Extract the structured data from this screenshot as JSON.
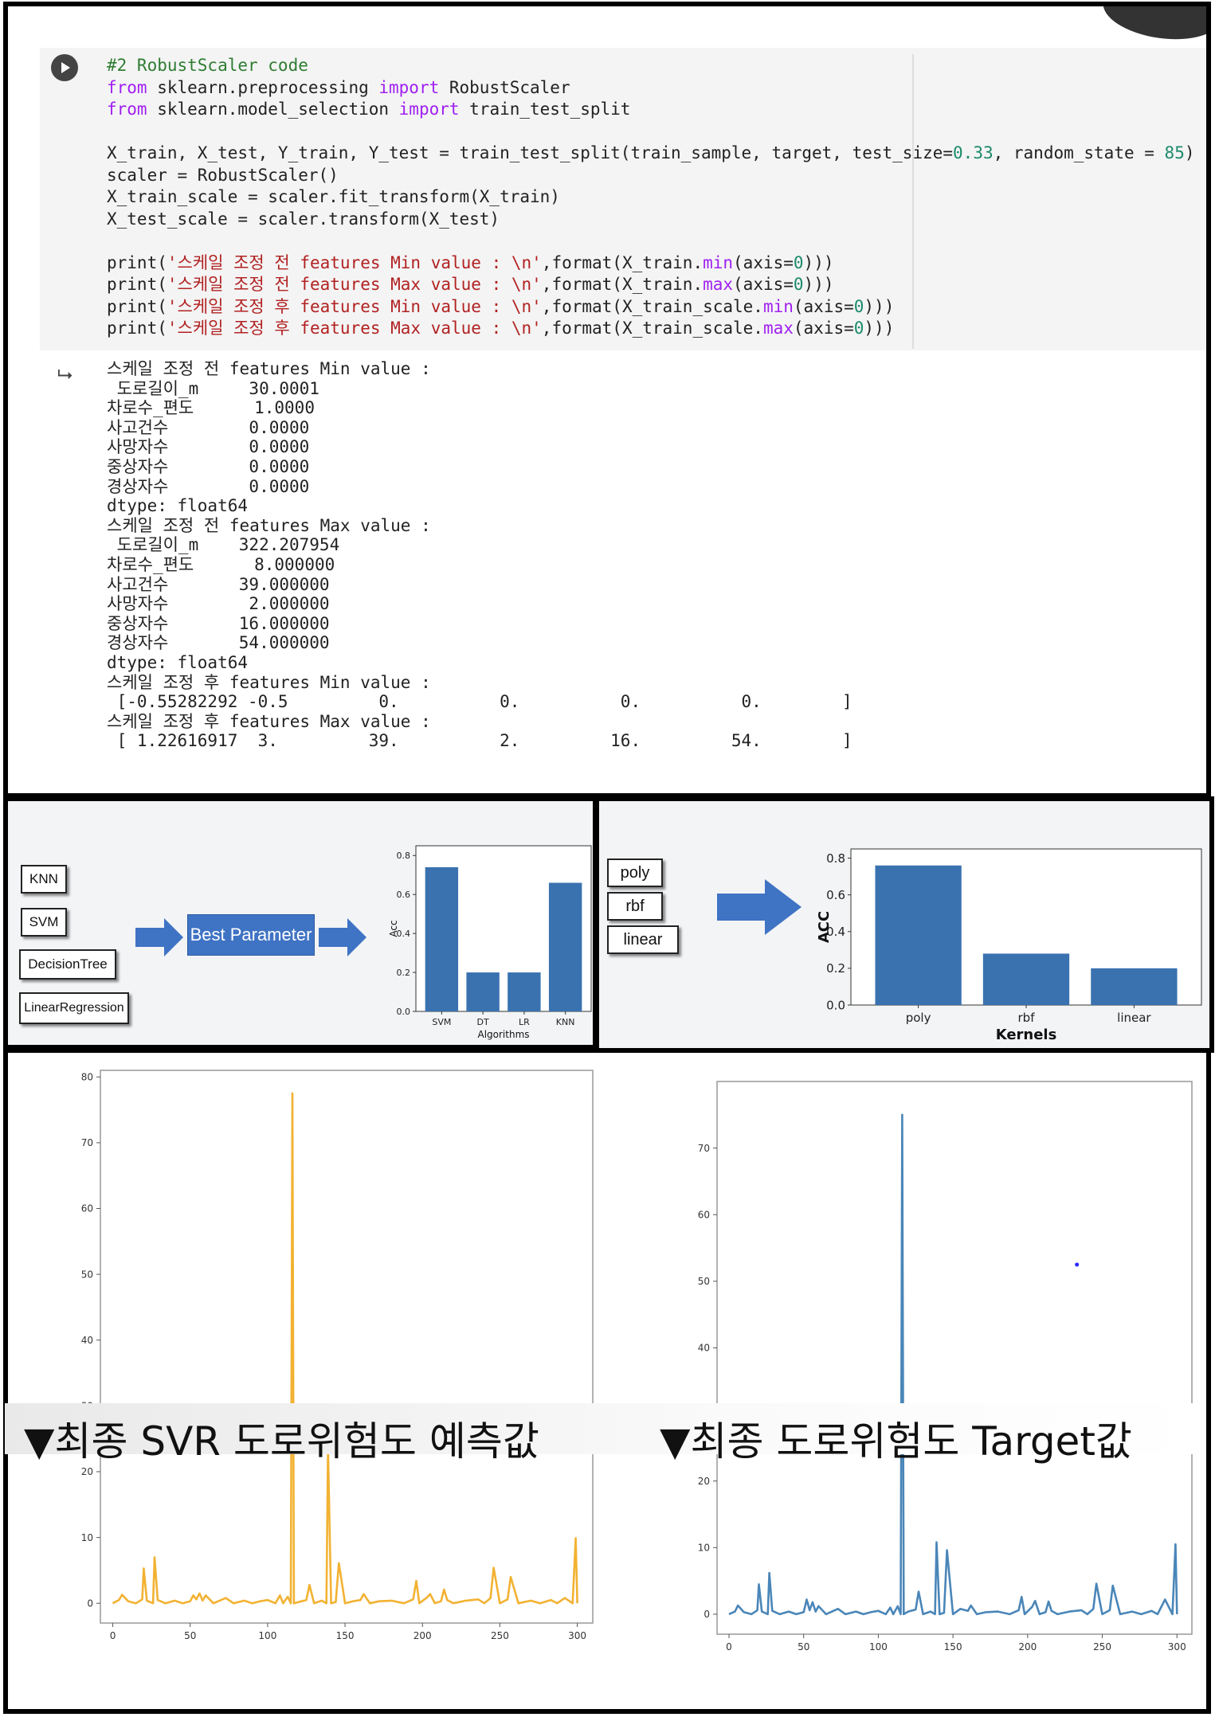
{
  "code": {
    "comment": "#2 RobustScaler code",
    "line2": {
      "kw1": "from",
      "mid": " sklearn.preprocessing ",
      "kw2": "import",
      "rest": " RobustScaler"
    },
    "line3": {
      "kw1": "from",
      "mid": " sklearn.model_selection ",
      "kw2": "import",
      "rest": " train_test_split"
    },
    "line5": {
      "pre": "X_train, X_test, Y_train, Y_test = train_test_split(train_sample, target, test_size=",
      "n1": "0.33",
      "mid": ", random_state = ",
      "n2": "85",
      ")": ")"
    },
    "line6": "scaler = RobustScaler()",
    "line7": "X_train_scale = scaler.fit_transform(X_train)",
    "line8": "X_test_scale = scaler.transform(X_test)",
    "print1": {
      "pre": "print(",
      "str": "'스케일 조정 전 features Min value : \\n'",
      "mid": ",format(X_train.",
      "fn": "min",
      "arg": "(axis=",
      "n": "0",
      "end": ")))"
    },
    "print2": {
      "pre": "print(",
      "str": "'스케일 조정 전 features Max value : \\n'",
      "mid": ",format(X_train.",
      "fn": "max",
      "arg": "(axis=",
      "n": "0",
      "end": ")))"
    },
    "print3": {
      "pre": "print(",
      "str": "'스케일 조정 후 features Min value : \\n'",
      "mid": ",format(X_train_scale.",
      "fn": "min",
      "arg": "(axis=",
      "n": "0",
      "end": ")))"
    },
    "print4": {
      "pre": "print(",
      "str": "'스케일 조정 후 features Max value : \\n'",
      "mid": ",format(X_train_scale.",
      "fn": "max",
      "arg": "(axis=",
      "n": "0",
      "end": ")))"
    }
  },
  "output": {
    "icon": "output-arrow-icon",
    "lines": [
      "스케일 조정 전 features Min value :",
      " 도로길이_m     30.0001",
      "차로수_편도      1.0000",
      "사고건수        0.0000",
      "사망자수        0.0000",
      "중상자수        0.0000",
      "경상자수        0.0000",
      "dtype: float64",
      "스케일 조정 전 features Max value :",
      " 도로길이_m    322.207954",
      "차로수_편도      8.000000",
      "사고건수       39.000000",
      "사망자수        2.000000",
      "중상자수       16.000000",
      "경상자수       54.000000",
      "dtype: float64",
      "스케일 조정 후 features Min value :",
      " [-0.55282292 -0.5         0.          0.          0.          0.        ]",
      "스케일 조정 후 features Max value :",
      " [ 1.22616917  3.         39.          2.         16.         54.        ]"
    ]
  },
  "models": {
    "items": [
      "KNN",
      "SVM",
      "DecisionTree",
      "LinearRegression"
    ],
    "best_label": "Best Parameter",
    "arrow_color": "#3f73c4"
  },
  "kernels": {
    "items": [
      "poly",
      "rbf",
      "linear"
    ]
  },
  "captions": {
    "left": "▼최종 SVR 도로위험도 예측값",
    "right": "▼최종 도로위험도 Target값"
  },
  "chart_data": [
    {
      "type": "bar",
      "categories": [
        "SVM",
        "DT",
        "LR",
        "KNN"
      ],
      "values": [
        0.74,
        0.2,
        0.2,
        0.66
      ],
      "xlabel": "Algorithms",
      "ylabel": "Acc",
      "ylim": [
        0,
        0.85
      ],
      "yticks": [
        "0.0",
        "0.2",
        "0.4",
        "0.6",
        "0.8"
      ],
      "color": "#3a72b0"
    },
    {
      "type": "bar",
      "categories": [
        "poly",
        "rbf",
        "linear"
      ],
      "values": [
        0.76,
        0.28,
        0.2
      ],
      "xlabel": "Kernels",
      "ylabel": "ACC",
      "ylim": [
        0,
        0.85
      ],
      "yticks": [
        "0.0",
        "0.2",
        "0.4",
        "0.6",
        "0.8"
      ],
      "color": "#3a72b0"
    },
    {
      "type": "line",
      "color": "#f2b232",
      "xlim": [
        -8,
        310
      ],
      "ylim": [
        -3,
        81
      ],
      "xticks": [
        "0",
        "50",
        "100",
        "150",
        "200",
        "250",
        "300"
      ],
      "yticks": [
        "0",
        "10",
        "20",
        "30",
        "40",
        "50",
        "60",
        "70",
        "80"
      ],
      "x": [
        0,
        4,
        6,
        10,
        15,
        19,
        20,
        22,
        26,
        27,
        29,
        34,
        40,
        45,
        50,
        52,
        54,
        56,
        58,
        60,
        65,
        70,
        73,
        78,
        85,
        90,
        95,
        100,
        105,
        108,
        110,
        113,
        115,
        116,
        117,
        120,
        125,
        127,
        130,
        135,
        138,
        139,
        141,
        144,
        146,
        150,
        155,
        160,
        162,
        166,
        172,
        180,
        188,
        194,
        196,
        198,
        203,
        205,
        208,
        212,
        214,
        216,
        220,
        228,
        236,
        240,
        244,
        246,
        250,
        255,
        257,
        262,
        270,
        276,
        283,
        287,
        292,
        297,
        299,
        300
      ],
      "y": [
        0,
        0.5,
        1.3,
        0.3,
        0,
        0.6,
        5.3,
        0.4,
        0,
        7.0,
        0.5,
        0,
        0.4,
        0,
        0.3,
        1.2,
        0.6,
        1.5,
        0.4,
        1.2,
        0,
        0.5,
        0.8,
        0,
        0.4,
        0,
        0.3,
        0.5,
        0,
        1.2,
        0,
        1.0,
        0,
        77.5,
        0,
        0.2,
        0.5,
        2.8,
        0,
        0.4,
        0,
        23.6,
        0,
        0.2,
        6.1,
        0,
        0.3,
        0.5,
        1.4,
        0,
        0.3,
        0.4,
        0,
        0.6,
        3.4,
        0,
        0.9,
        1.4,
        0,
        0.3,
        2.1,
        0.5,
        0,
        0.4,
        0.6,
        0,
        0.8,
        5.4,
        0,
        0.6,
        4.0,
        0,
        0.4,
        0,
        0.5,
        0,
        0.8,
        0,
        9.9,
        0
      ]
    },
    {
      "type": "line",
      "color": "#4a86b8",
      "xlim": [
        -8,
        310
      ],
      "ylim": [
        -3,
        80
      ],
      "xticks": [
        "0",
        "50",
        "100",
        "150",
        "200",
        "250",
        "300"
      ],
      "yticks": [
        "0",
        "10",
        "20",
        "30",
        "40",
        "50",
        "60",
        "70"
      ],
      "x": [
        0,
        4,
        6,
        10,
        15,
        19,
        20,
        22,
        26,
        27,
        29,
        34,
        40,
        45,
        50,
        52,
        54,
        56,
        58,
        60,
        65,
        70,
        73,
        78,
        85,
        90,
        95,
        100,
        105,
        108,
        110,
        113,
        115,
        116,
        117,
        120,
        125,
        127,
        130,
        135,
        138,
        139,
        141,
        144,
        146,
        150,
        155,
        160,
        162,
        166,
        172,
        180,
        188,
        194,
        196,
        198,
        203,
        205,
        208,
        212,
        214,
        216,
        220,
        228,
        236,
        240,
        244,
        246,
        250,
        255,
        257,
        262,
        270,
        276,
        283,
        287,
        292,
        297,
        299,
        300
      ],
      "y": [
        0,
        0.4,
        1.3,
        0.3,
        0,
        0.6,
        4.5,
        0.4,
        0,
        6.2,
        0.5,
        0,
        0.4,
        0,
        0.3,
        2.2,
        0.6,
        1.8,
        0.4,
        1.2,
        0,
        0.5,
        0.8,
        0,
        0.4,
        0,
        0.3,
        0.5,
        0,
        1.0,
        0,
        1.2,
        0,
        75.0,
        0,
        0.4,
        0.7,
        3.4,
        0,
        0.4,
        0,
        10.8,
        0,
        0.2,
        9.6,
        0,
        0.8,
        0.5,
        1.3,
        0,
        0.3,
        0.4,
        0,
        0.6,
        2.6,
        0,
        1.1,
        2.0,
        0,
        0.3,
        1.9,
        0.5,
        0,
        0.4,
        0.6,
        0,
        0.8,
        4.6,
        0,
        0.6,
        4.3,
        0,
        0.4,
        0,
        0.5,
        0,
        2.2,
        0,
        10.5,
        0
      ],
      "annotation_point": {
        "x": 233,
        "y": 52.5,
        "color": "#2a2aff"
      }
    }
  ]
}
